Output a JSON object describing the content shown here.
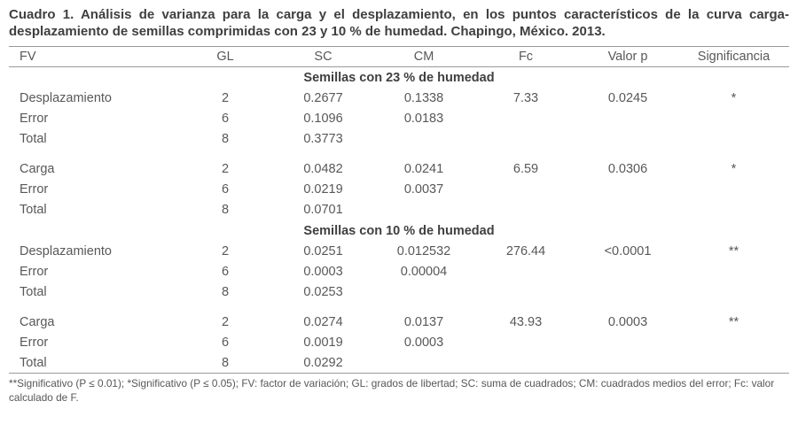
{
  "title": "Cuadro 1. Análisis de varianza para la carga y el desplazamiento, en los puntos característicos de la curva carga-desplazamiento de semillas comprimidas con 23 y 10 % de humedad. Chapingo, México. 2013.",
  "table": {
    "headers": [
      "FV",
      "GL",
      "SC",
      "CM",
      "Fc",
      "Valor p",
      "Significancia"
    ],
    "sections": [
      {
        "label": "Semillas con 23 % de humedad",
        "groups": [
          {
            "rows": [
              [
                "Desplazamiento",
                "2",
                "0.2677",
                "0.1338",
                "7.33",
                "0.0245",
                "*"
              ],
              [
                "Error",
                "6",
                "0.1096",
                "0.0183",
                "",
                "",
                ""
              ],
              [
                "Total",
                "8",
                "0.3773",
                "",
                "",
                "",
                ""
              ]
            ]
          },
          {
            "rows": [
              [
                "Carga",
                "2",
                "0.0482",
                "0.0241",
                "6.59",
                "0.0306",
                "*"
              ],
              [
                "Error",
                "6",
                "0.0219",
                "0.0037",
                "",
                "",
                ""
              ],
              [
                "Total",
                "8",
                "0.0701",
                "",
                "",
                "",
                ""
              ]
            ]
          }
        ]
      },
      {
        "label": "Semillas con 10 % de humedad",
        "groups": [
          {
            "rows": [
              [
                "Desplazamiento",
                "2",
                "0.0251",
                "0.012532",
                "276.44",
                "<0.0001",
                "**"
              ],
              [
                "Error",
                "6",
                "0.0003",
                "0.00004",
                "",
                "",
                ""
              ],
              [
                "Total",
                "8",
                "0.0253",
                "",
                "",
                "",
                ""
              ]
            ]
          },
          {
            "rows": [
              [
                "Carga",
                "2",
                "0.0274",
                "0.0137",
                "43.93",
                "0.0003",
                "**"
              ],
              [
                "Error",
                "6",
                "0.0019",
                "0.0003",
                "",
                "",
                ""
              ],
              [
                "Total",
                "8",
                "0.0292",
                "",
                "",
                "",
                ""
              ]
            ]
          }
        ]
      }
    ]
  },
  "footnote": "**Significativo (P ≤ 0.01); *Significativo (P ≤ 0.05); FV: factor de variación; GL: grados de libertad; SC: suma de cuadrados; CM: cuadrados medios del error; Fc: valor calculado de F."
}
